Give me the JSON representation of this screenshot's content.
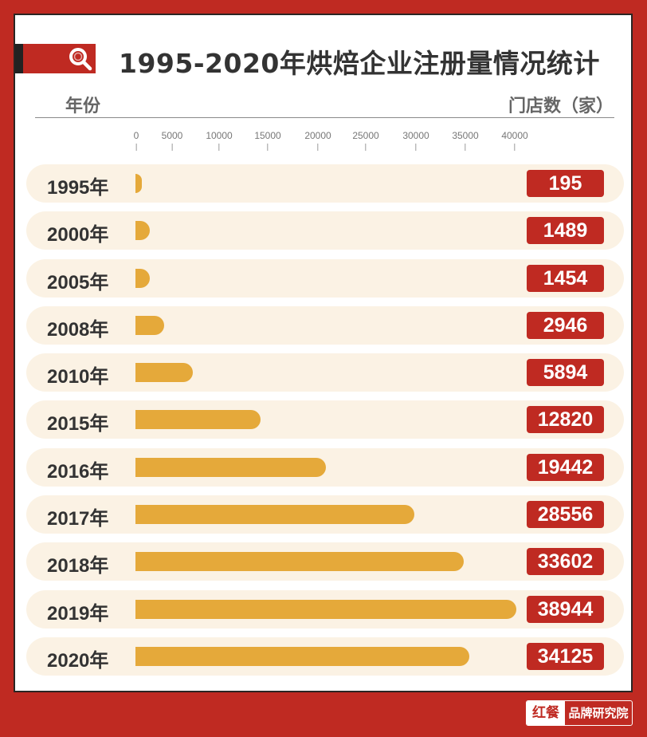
{
  "header": {
    "title": "1995-2020年烘焙企业注册量情况统计",
    "left_column_label": "年份",
    "right_column_label": "门店数（家）",
    "icon": "search-icon"
  },
  "axis": {
    "ticks": [
      "0",
      "5000",
      "10000",
      "15000",
      "20000",
      "25000",
      "30000",
      "35000",
      "40000"
    ]
  },
  "rows": [
    {
      "year": "1995",
      "suffix": "年",
      "value": 195,
      "label": "195"
    },
    {
      "year": "2000",
      "suffix": "年",
      "value": 1489,
      "label": "1489"
    },
    {
      "year": "2005",
      "suffix": "年",
      "value": 1454,
      "label": "1454"
    },
    {
      "year": "2008",
      "suffix": "年",
      "value": 2946,
      "label": "2946"
    },
    {
      "year": "2010",
      "suffix": "年",
      "value": 5894,
      "label": "5894"
    },
    {
      "year": "2015",
      "suffix": "年",
      "value": 12820,
      "label": "12820"
    },
    {
      "year": "2016",
      "suffix": "年",
      "value": 19442,
      "label": "19442"
    },
    {
      "year": "2017",
      "suffix": "年",
      "value": 28556,
      "label": "28556"
    },
    {
      "year": "2018",
      "suffix": "年",
      "value": 33602,
      "label": "33602"
    },
    {
      "year": "2019",
      "suffix": "年",
      "value": 38944,
      "label": "38944"
    },
    {
      "year": "2020",
      "suffix": "年",
      "value": 34125,
      "label": "34125"
    }
  ],
  "brand": {
    "logo_text": "红餐",
    "name": "品牌研究院"
  },
  "colors": {
    "brand_red": "#bf2a22",
    "bar": "#e5a93a",
    "row_bg": "#fbf2e4",
    "text_dark": "#333333"
  },
  "chart_data": {
    "type": "bar",
    "orientation": "horizontal",
    "title": "1995-2020年烘焙企业注册量情况统计",
    "xlabel": "门店数（家）",
    "ylabel": "年份",
    "categories": [
      "1995年",
      "2000年",
      "2005年",
      "2008年",
      "2010年",
      "2015年",
      "2016年",
      "2017年",
      "2018年",
      "2019年",
      "2020年"
    ],
    "values": [
      195,
      1489,
      1454,
      2946,
      5894,
      12820,
      19442,
      28556,
      33602,
      38944,
      34125
    ],
    "xlim": [
      0,
      40000
    ],
    "xticks": [
      0,
      5000,
      10000,
      15000,
      20000,
      25000,
      30000,
      35000,
      40000
    ],
    "grid": false,
    "legend": null,
    "data_labels": true
  }
}
